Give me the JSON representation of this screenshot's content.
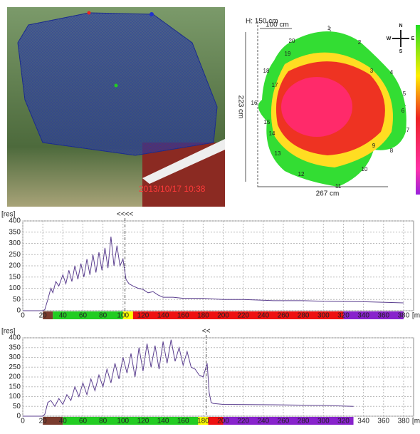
{
  "photo": {
    "timestamp": "2013/10/17 10:38"
  },
  "tomogram": {
    "height_label": "H: 150 cm",
    "scale_label": "100 cm",
    "depth_label": "223 cm",
    "width_label": "267 cm",
    "compass": [
      "N",
      "E",
      "S",
      "W"
    ],
    "sensors": [
      "1",
      "2",
      "3",
      "4",
      "5",
      "6",
      "7",
      "8",
      "9",
      "10",
      "11",
      "12",
      "13",
      "14",
      "15",
      "16",
      "17",
      "18",
      "19",
      "20"
    ]
  },
  "chart_data": [
    {
      "type": "line",
      "ylabel": "[res]",
      "xlabel": "[mm]",
      "marker": {
        "label": "<<<<",
        "x": 102
      },
      "x": [
        0,
        20,
        22,
        25,
        28,
        30,
        33,
        36,
        40,
        43,
        46,
        49,
        52,
        55,
        58,
        61,
        64,
        67,
        70,
        73,
        76,
        79,
        82,
        85,
        88,
        91,
        94,
        97,
        100,
        103,
        106,
        110,
        115,
        120,
        125,
        130,
        135,
        140,
        150,
        160,
        180,
        200,
        220,
        250,
        280,
        300,
        340,
        380
      ],
      "series": [
        {
          "color": "#5b3f8f",
          "values": [
            0,
            0,
            5,
            50,
            100,
            80,
            130,
            110,
            160,
            120,
            180,
            130,
            200,
            140,
            210,
            150,
            230,
            160,
            250,
            170,
            260,
            180,
            280,
            190,
            330,
            200,
            290,
            200,
            230,
            140,
            120,
            110,
            100,
            95,
            80,
            85,
            70,
            60,
            60,
            55,
            55,
            50,
            50,
            45,
            45,
            42,
            40,
            35
          ]
        }
      ],
      "zones": [
        {
          "from": 20,
          "to": 30,
          "color": "#7a3b2e"
        },
        {
          "from": 30,
          "to": 100,
          "color": "#22cc22"
        },
        {
          "from": 100,
          "to": 110,
          "color": "#ffff00"
        },
        {
          "from": 110,
          "to": 320,
          "color": "#ee1111"
        },
        {
          "from": 320,
          "to": 380,
          "color": "#8822cc"
        }
      ],
      "xlim": [
        0,
        390
      ],
      "ylim": [
        0,
        400
      ],
      "xticks": [
        0,
        20,
        40,
        60,
        80,
        100,
        120,
        140,
        160,
        180,
        200,
        220,
        240,
        260,
        280,
        300,
        320,
        340,
        360,
        380
      ],
      "yticks": [
        0,
        50,
        100,
        150,
        200,
        250,
        300,
        350,
        400
      ]
    },
    {
      "type": "line",
      "ylabel": "[res]",
      "xlabel": "[mm]",
      "marker": {
        "label": "<<",
        "x": 183
      },
      "x": [
        0,
        20,
        22,
        25,
        28,
        32,
        36,
        40,
        44,
        48,
        52,
        56,
        60,
        64,
        68,
        72,
        76,
        80,
        84,
        88,
        92,
        96,
        100,
        104,
        108,
        112,
        116,
        120,
        124,
        128,
        132,
        136,
        140,
        144,
        148,
        152,
        156,
        160,
        164,
        168,
        172,
        176,
        180,
        184,
        186,
        188,
        190,
        200,
        250,
        300,
        330
      ],
      "series": [
        {
          "color": "#5b3f8f",
          "values": [
            0,
            0,
            10,
            70,
            80,
            50,
            90,
            60,
            110,
            80,
            150,
            100,
            170,
            110,
            190,
            130,
            210,
            150,
            240,
            170,
            270,
            190,
            300,
            220,
            320,
            200,
            350,
            230,
            370,
            250,
            360,
            240,
            380,
            270,
            390,
            280,
            350,
            260,
            330,
            250,
            240,
            210,
            200,
            270,
            120,
            70,
            65,
            60,
            58,
            55,
            50
          ]
        }
      ],
      "zones": [
        {
          "from": 20,
          "to": 40,
          "color": "#7a3b2e"
        },
        {
          "from": 40,
          "to": 175,
          "color": "#22cc22"
        },
        {
          "from": 175,
          "to": 185,
          "color": "#ffff00"
        },
        {
          "from": 185,
          "to": 200,
          "color": "#ee1111"
        },
        {
          "from": 200,
          "to": 330,
          "color": "#8822cc"
        }
      ],
      "xlim": [
        0,
        390
      ],
      "ylim": [
        0,
        400
      ],
      "xticks": [
        0,
        20,
        40,
        60,
        80,
        100,
        120,
        140,
        160,
        180,
        200,
        220,
        240,
        260,
        280,
        300,
        320,
        340,
        360,
        380
      ],
      "yticks": [
        0,
        50,
        100,
        150,
        200,
        250,
        300,
        350,
        400
      ]
    }
  ]
}
